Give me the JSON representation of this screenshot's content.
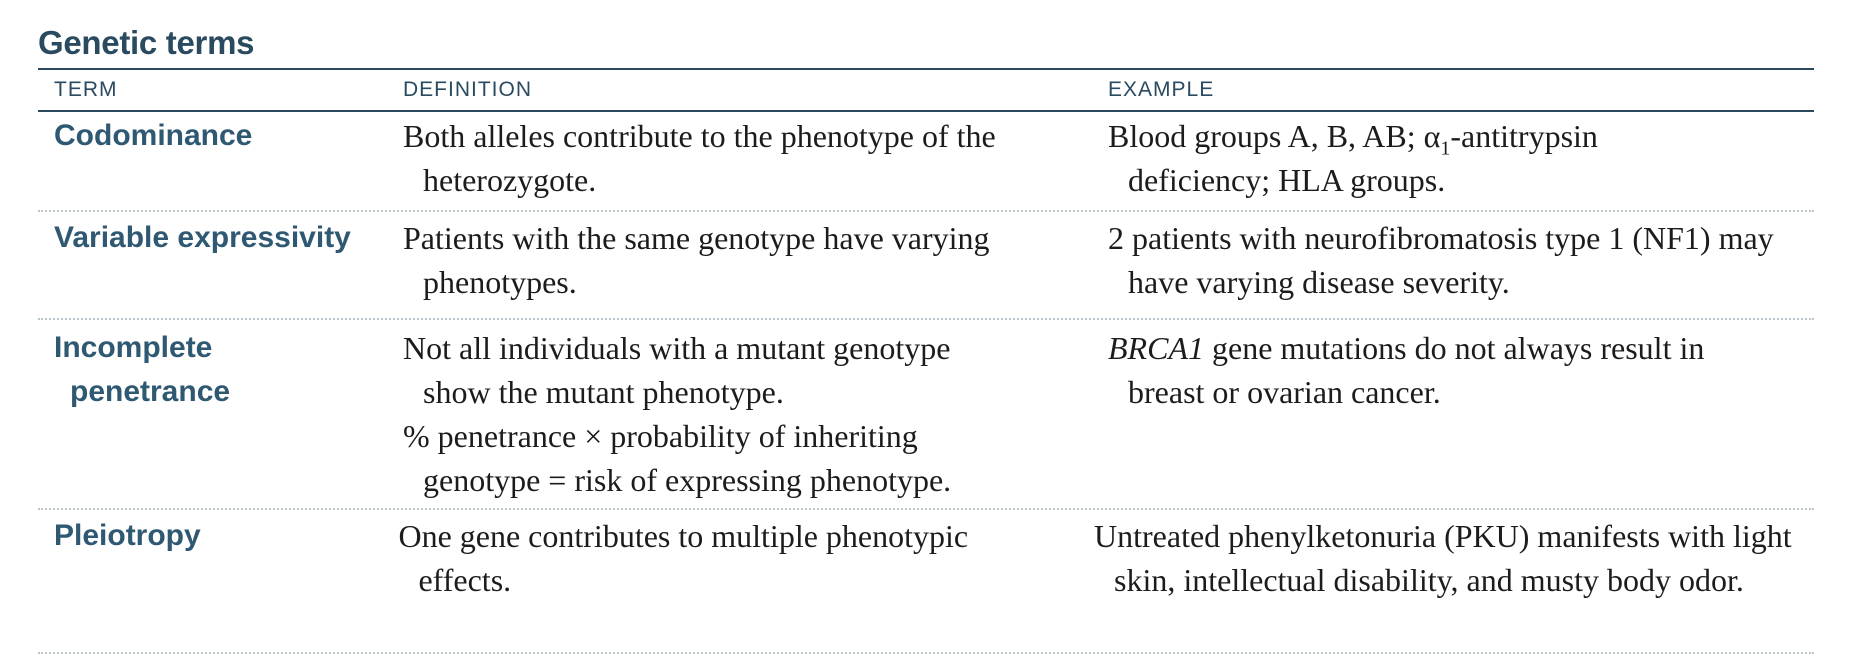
{
  "title": "Genetic terms",
  "headers": {
    "term": "TERM",
    "definition": "DEFINITION",
    "example": "EXAMPLE"
  },
  "rows": [
    {
      "term": "Codominance",
      "definition": "Both alleles contribute to the phenotype of the heterozygote.",
      "example_pre": "Blood groups A, B, AB; α",
      "example_sub": "1",
      "example_post": "-antitrypsin deficiency; HLA groups."
    },
    {
      "term": "Variable expressivity",
      "definition": "Patients with the same genotype have varying phenotypes.",
      "example": "2 patients with neurofibromatosis type 1 (NF1) may have varying disease severity."
    },
    {
      "term_line1": "Incomplete",
      "term_line2": "penetrance",
      "definition": "Not all individuals with a mutant genotype show the mutant phenotype.",
      "definition2": "% penetrance × probability of inheriting genotype = risk of expressing phenotype.",
      "example_gene": "BRCA1",
      "example_rest": " gene mutations do not always result in breast or ovarian cancer."
    },
    {
      "term": "Pleiotropy",
      "definition": "One gene contributes to multiple phenotypic effects.",
      "example": "Untreated phenylketonuria (PKU) manifests with light skin, intellectual disability, and musty body odor."
    }
  ]
}
